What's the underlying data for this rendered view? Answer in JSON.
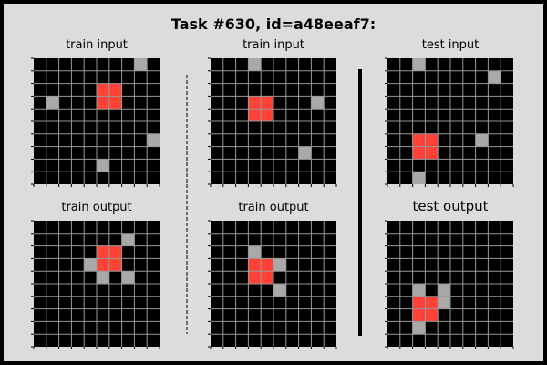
{
  "title": "Task #630, id=a48eeaf7:",
  "colors": {
    "background": "#000000",
    "grid_line": "#999999",
    "gray_cell": "#a9a9a9",
    "red_cell": "#ff4136"
  },
  "panels": [
    {
      "id": "train-input-1",
      "title": "train input",
      "rows": 10,
      "cols": 10,
      "red": [
        [
          2,
          5
        ],
        [
          2,
          6
        ],
        [
          3,
          5
        ],
        [
          3,
          6
        ]
      ],
      "gray": [
        [
          0,
          8
        ],
        [
          3,
          1
        ],
        [
          6,
          9
        ],
        [
          8,
          5
        ]
      ]
    },
    {
      "id": "train-input-2",
      "title": "train input",
      "rows": 10,
      "cols": 10,
      "red": [
        [
          3,
          3
        ],
        [
          3,
          4
        ],
        [
          4,
          3
        ],
        [
          4,
          4
        ]
      ],
      "gray": [
        [
          0,
          3
        ],
        [
          3,
          8
        ],
        [
          7,
          7
        ]
      ]
    },
    {
      "id": "test-input",
      "title": "test input",
      "rows": 10,
      "cols": 10,
      "red": [
        [
          6,
          2
        ],
        [
          6,
          3
        ],
        [
          7,
          2
        ],
        [
          7,
          3
        ]
      ],
      "gray": [
        [
          0,
          2
        ],
        [
          1,
          8
        ],
        [
          6,
          7
        ],
        [
          9,
          2
        ]
      ]
    },
    {
      "id": "train-output-1",
      "title": "train output",
      "rows": 10,
      "cols": 10,
      "red": [
        [
          2,
          5
        ],
        [
          2,
          6
        ],
        [
          3,
          5
        ],
        [
          3,
          6
        ]
      ],
      "gray": [
        [
          1,
          7
        ],
        [
          3,
          4
        ],
        [
          4,
          5
        ],
        [
          4,
          7
        ]
      ]
    },
    {
      "id": "train-output-2",
      "title": "train output",
      "rows": 10,
      "cols": 10,
      "red": [
        [
          3,
          3
        ],
        [
          3,
          4
        ],
        [
          4,
          3
        ],
        [
          4,
          4
        ]
      ],
      "gray": [
        [
          2,
          3
        ],
        [
          3,
          5
        ],
        [
          5,
          5
        ]
      ]
    },
    {
      "id": "test-output",
      "title": "test output",
      "rows": 10,
      "cols": 10,
      "red": [
        [
          6,
          2
        ],
        [
          6,
          3
        ],
        [
          7,
          2
        ],
        [
          7,
          3
        ]
      ],
      "gray": [
        [
          5,
          2
        ],
        [
          5,
          4
        ],
        [
          6,
          4
        ],
        [
          8,
          2
        ]
      ]
    }
  ]
}
